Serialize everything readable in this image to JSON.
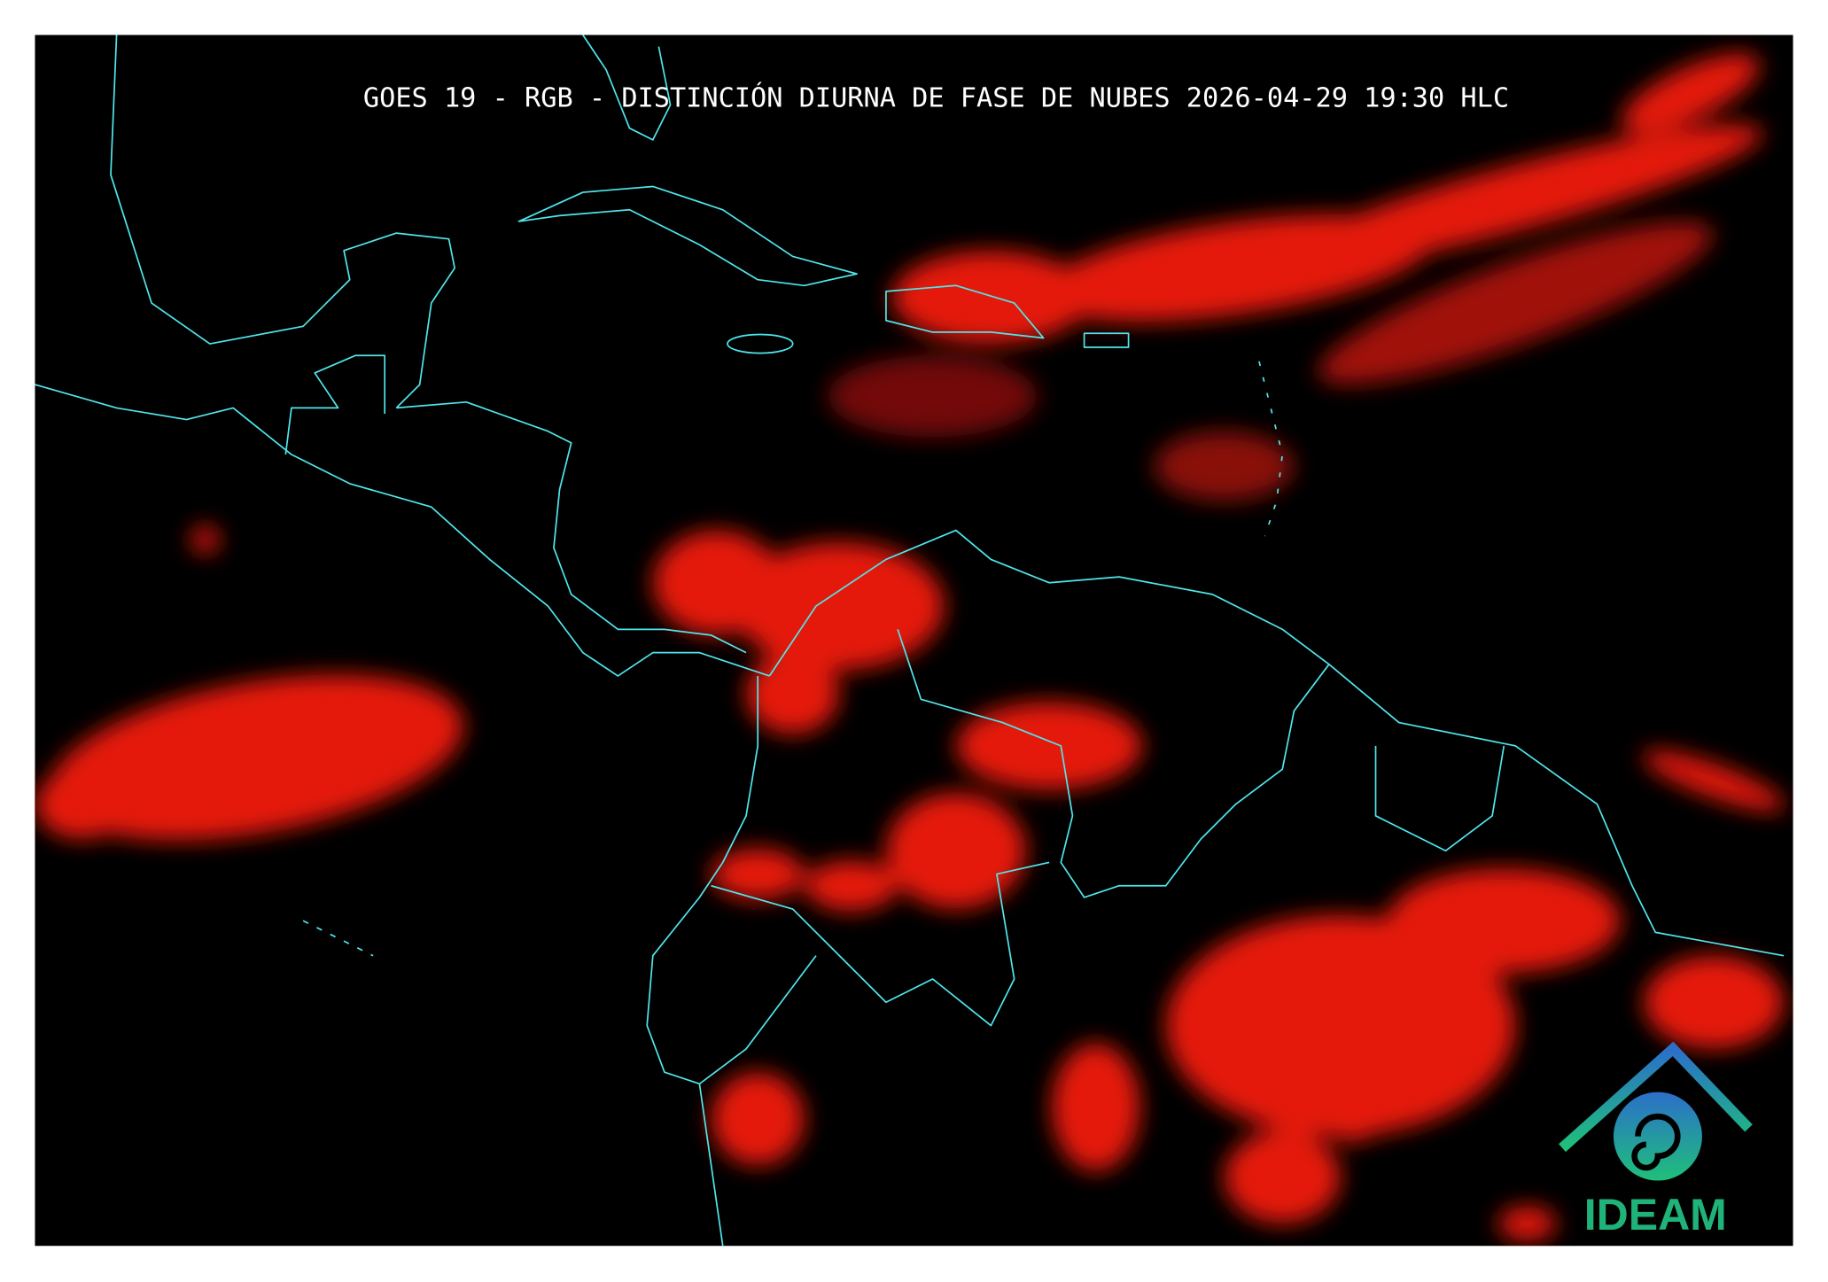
{
  "title": "GOES 19 - RGB - DISTINCIÓN DIURNA DE FASE DE NUBES 2026-04-29 19:30 HLC",
  "logo": {
    "text": "IDEAM"
  }
}
